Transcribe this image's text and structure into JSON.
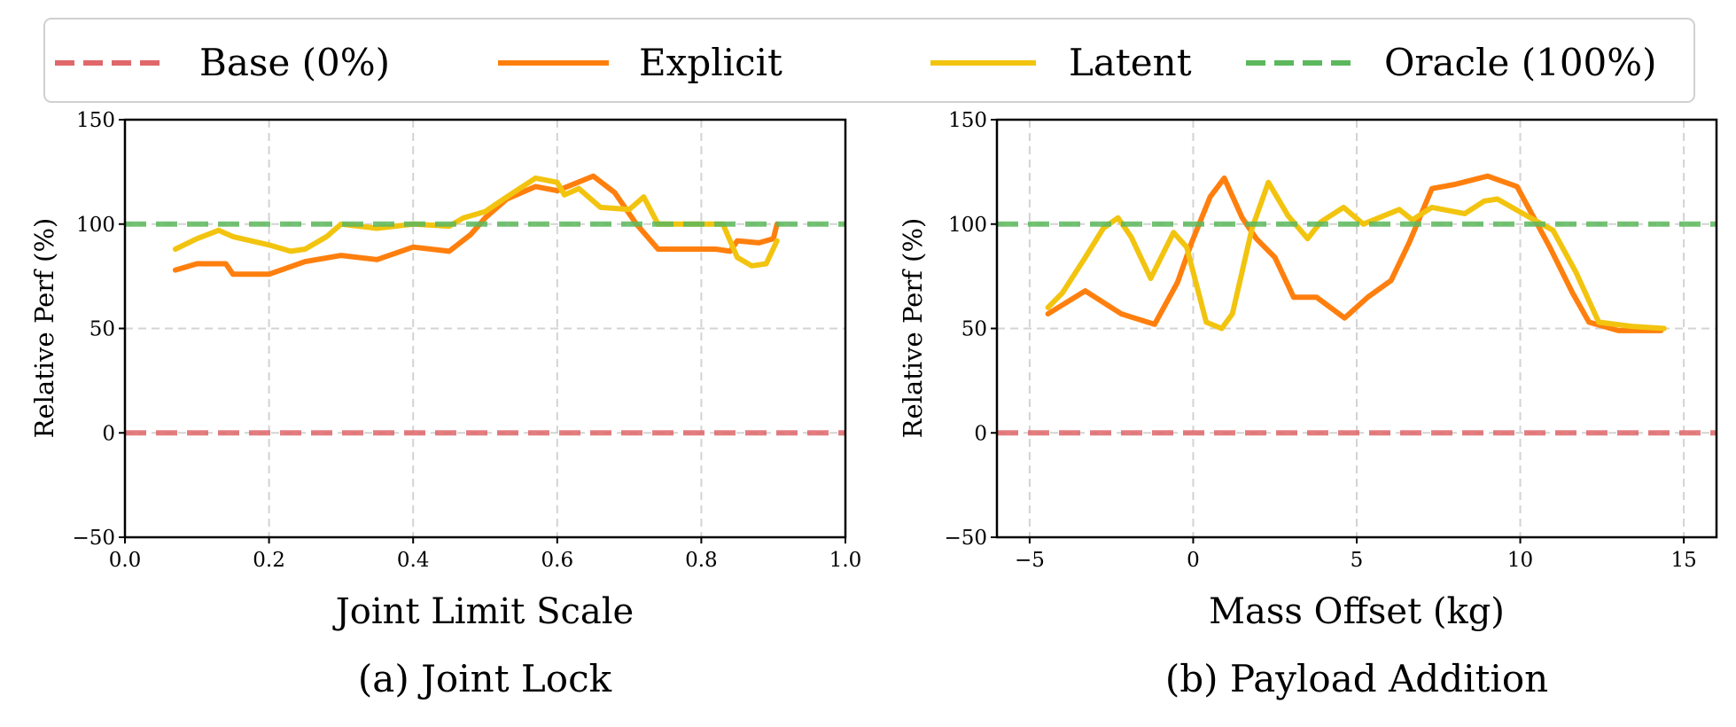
{
  "legend": {
    "placement": "top, outside",
    "entries": [
      {
        "label": "Base (0%)",
        "color": "#e0676a",
        "style": "dashed"
      },
      {
        "label": "Explicit",
        "color": "#ff7f0e",
        "style": "solid"
      },
      {
        "label": "Latent",
        "color": "#f2c40f",
        "style": "solid"
      },
      {
        "label": "Oracle (100%)",
        "color": "#5cb85c",
        "style": "dashed"
      }
    ]
  },
  "chart_data": [
    {
      "type": "line",
      "subtitle": "(a) Joint Lock",
      "xlabel": "Joint Limit Scale",
      "ylabel": "Relative Perf (%)",
      "xlim": [
        0.0,
        1.0
      ],
      "ylim": [
        -50,
        150
      ],
      "xticks": [
        "0.0",
        "0.2",
        "0.4",
        "0.6",
        "0.8",
        "1.0"
      ],
      "xtick_values": [
        0,
        0.2,
        0.4,
        0.6,
        0.8,
        1.0
      ],
      "yticks": [
        "150",
        "100",
        "50",
        "0",
        "−50"
      ],
      "ytick_values": [
        150,
        100,
        50,
        0,
        -50
      ],
      "grid": true,
      "reference_lines": [
        {
          "name": "Base (0%)",
          "y": 0
        },
        {
          "name": "Oracle (100%)",
          "y": 100
        }
      ],
      "series": [
        {
          "name": "Explicit",
          "x": [
            0.07,
            0.1,
            0.14,
            0.15,
            0.2,
            0.25,
            0.3,
            0.35,
            0.4,
            0.45,
            0.48,
            0.5,
            0.53,
            0.57,
            0.6,
            0.65,
            0.68,
            0.71,
            0.74,
            0.82,
            0.84,
            0.85,
            0.88,
            0.9,
            0.905
          ],
          "y": [
            78,
            81,
            81,
            76,
            76,
            82,
            85,
            83,
            89,
            87,
            95,
            103,
            112,
            118,
            116,
            123,
            115,
            100,
            88,
            88,
            87,
            92,
            91,
            93,
            100
          ]
        },
        {
          "name": "Latent",
          "x": [
            0.07,
            0.1,
            0.13,
            0.15,
            0.2,
            0.23,
            0.25,
            0.28,
            0.3,
            0.35,
            0.4,
            0.45,
            0.47,
            0.5,
            0.53,
            0.57,
            0.6,
            0.61,
            0.63,
            0.66,
            0.7,
            0.72,
            0.74,
            0.83,
            0.85,
            0.87,
            0.89,
            0.905
          ],
          "y": [
            88,
            93,
            97,
            94,
            90,
            87,
            88,
            94,
            100,
            98,
            100,
            99,
            103,
            106,
            113,
            122,
            120,
            114,
            117,
            108,
            107,
            113,
            100,
            100,
            84,
            80,
            81,
            92
          ]
        }
      ]
    },
    {
      "type": "line",
      "subtitle": "(b) Payload Addition",
      "xlabel": "Mass Offset (kg)",
      "ylabel": "Relative Perf (%)",
      "xlim": [
        -6,
        16
      ],
      "ylim": [
        -50,
        150
      ],
      "xticks": [
        "−5",
        "0",
        "5",
        "10",
        "15"
      ],
      "xtick_values": [
        -5,
        0,
        5,
        10,
        15
      ],
      "yticks": [
        "150",
        "100",
        "50",
        "0",
        "−50"
      ],
      "ytick_values": [
        150,
        100,
        50,
        0,
        -50
      ],
      "grid": true,
      "reference_lines": [
        {
          "name": "Base (0%)",
          "y": 0
        },
        {
          "name": "Oracle (100%)",
          "y": 100
        }
      ],
      "series": [
        {
          "name": "Explicit",
          "x": [
            -4.44,
            -3.3,
            -2.2,
            -1.18,
            -0.48,
            -0.05,
            0.52,
            0.95,
            1.5,
            1.93,
            2.5,
            3.07,
            3.77,
            4.63,
            5.34,
            6.05,
            6.6,
            7.3,
            8.0,
            9.0,
            9.9,
            10.9,
            11.6,
            12.1,
            13.0,
            14.3
          ],
          "y": [
            57,
            68,
            57,
            52,
            72,
            91,
            113,
            122,
            103,
            93,
            84,
            65,
            65,
            55,
            65,
            73,
            91,
            117,
            119,
            123,
            118,
            89,
            67,
            53,
            49,
            49
          ]
        },
        {
          "name": "Latent",
          "x": [
            -4.44,
            -4.0,
            -3.3,
            -2.75,
            -2.3,
            -1.9,
            -1.3,
            -0.6,
            -0.2,
            0.4,
            0.87,
            1.2,
            1.8,
            2.3,
            2.9,
            3.5,
            3.9,
            4.6,
            5.2,
            6.3,
            6.7,
            7.3,
            8.3,
            8.9,
            9.3,
            10.2,
            11.0,
            11.7,
            12.4,
            13.4,
            14.4
          ],
          "y": [
            60,
            67,
            84,
            98,
            103,
            94,
            74,
            96,
            89,
            53,
            50,
            57,
            98,
            120,
            104,
            93,
            101,
            108,
            100,
            107,
            102,
            108,
            105,
            111,
            112,
            104,
            97,
            77,
            53,
            51,
            50
          ]
        }
      ]
    }
  ]
}
